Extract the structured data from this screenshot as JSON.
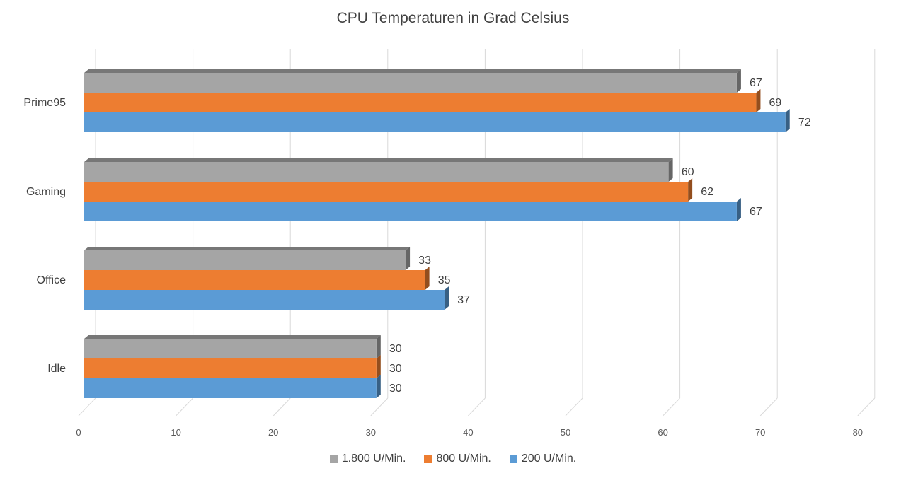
{
  "chart_data": {
    "type": "bar",
    "orientation": "horizontal",
    "title": "CPU Temperaturen in Grad Celsius",
    "categories": [
      "Prime95",
      "Gaming",
      "Office",
      "Idle"
    ],
    "series": [
      {
        "name": "1.800 U/Min.",
        "color": "#a5a5a5",
        "values": [
          67,
          60,
          33,
          30
        ]
      },
      {
        "name": "800 U/Min.",
        "color": "#ed7d31",
        "values": [
          69,
          62,
          35,
          30
        ]
      },
      {
        "name": "200 U/Min.",
        "color": "#5b9bd5",
        "values": [
          72,
          67,
          37,
          30
        ]
      }
    ],
    "x_ticks": [
      "0",
      "10",
      "20",
      "30",
      "40",
      "50",
      "60",
      "70",
      "80"
    ],
    "xlim": [
      0,
      80
    ],
    "grid": true,
    "legend_position": "bottom",
    "data_labels": true,
    "style": "3d"
  }
}
